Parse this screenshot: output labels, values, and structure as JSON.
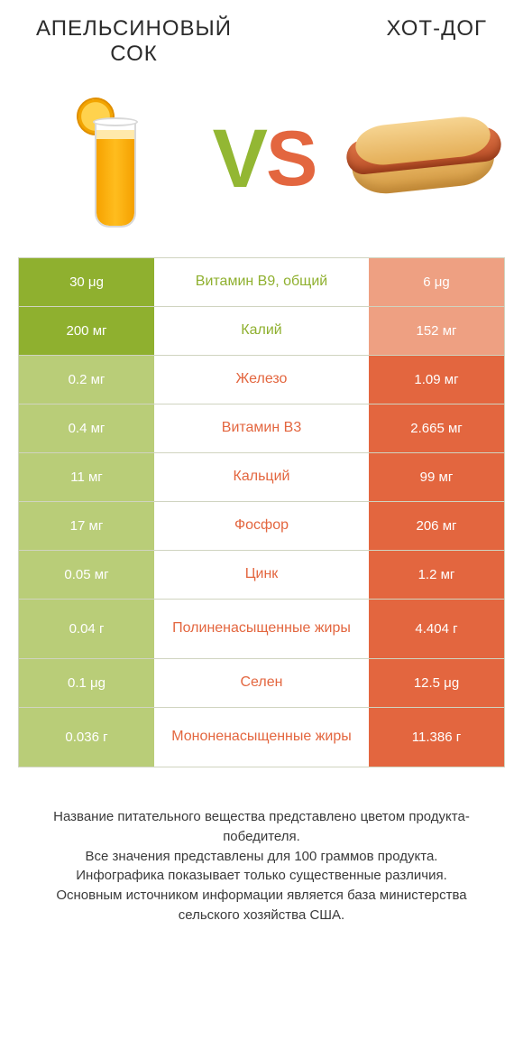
{
  "header": {
    "left_title": "АПЕЛЬСИНОВЫЙ\nСОК",
    "right_title": "ХОТ-ДОГ",
    "vs_v": "V",
    "vs_s": "S"
  },
  "colors": {
    "left_win": "#8fb02f",
    "left_lose": "#b9cd78",
    "right_win": "#e3663f",
    "right_lose": "#eea082",
    "label_left": "#8fb02f",
    "label_right": "#e3663f",
    "border": "#d0d4c0",
    "text": "#333333"
  },
  "table": {
    "rows": [
      {
        "left": "30 μg",
        "label": "Витамин B9, общий",
        "right": "6 μg",
        "winner": "left",
        "tall": false
      },
      {
        "left": "200 мг",
        "label": "Калий",
        "right": "152 мг",
        "winner": "left",
        "tall": false
      },
      {
        "left": "0.2 мг",
        "label": "Железо",
        "right": "1.09 мг",
        "winner": "right",
        "tall": false
      },
      {
        "left": "0.4 мг",
        "label": "Витамин B3",
        "right": "2.665 мг",
        "winner": "right",
        "tall": false
      },
      {
        "left": "11 мг",
        "label": "Кальций",
        "right": "99 мг",
        "winner": "right",
        "tall": false
      },
      {
        "left": "17 мг",
        "label": "Фосфор",
        "right": "206 мг",
        "winner": "right",
        "tall": false
      },
      {
        "left": "0.05 мг",
        "label": "Цинк",
        "right": "1.2 мг",
        "winner": "right",
        "tall": false
      },
      {
        "left": "0.04 г",
        "label": "Полиненасыщенные жиры",
        "right": "4.404 г",
        "winner": "right",
        "tall": true
      },
      {
        "left": "0.1 μg",
        "label": "Селен",
        "right": "12.5 μg",
        "winner": "right",
        "tall": false
      },
      {
        "left": "0.036 г",
        "label": "Мононенасыщенные жиры",
        "right": "11.386 г",
        "winner": "right",
        "tall": true
      }
    ]
  },
  "footer": {
    "l1": "Название питательного вещества представлено цветом продукта-победителя.",
    "l2": "Все значения представлены для 100 граммов продукта.",
    "l3": "Инфографика показывает только существенные различия.",
    "l4": "Основным источником информации является база министерства сельского хозяйства США."
  }
}
